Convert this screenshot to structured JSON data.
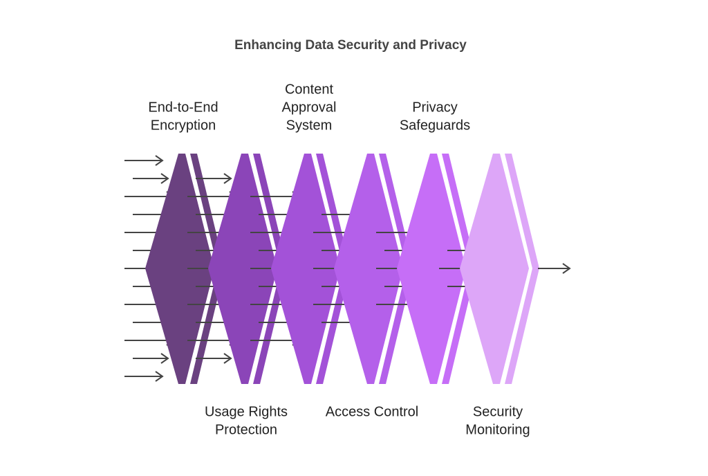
{
  "title": "Enhancing Data Security and Privacy",
  "stages": [
    {
      "label": [
        "End-to-End",
        "Encryption"
      ]
    },
    {
      "label": [
        "Usage Rights",
        "Protection"
      ]
    },
    {
      "label": [
        "Content",
        "Approval",
        "System"
      ]
    },
    {
      "label": [
        "Access Control"
      ]
    },
    {
      "label": [
        "Privacy",
        "Safeguards"
      ]
    },
    {
      "label": [
        "Security",
        "Monitoring"
      ]
    }
  ]
}
